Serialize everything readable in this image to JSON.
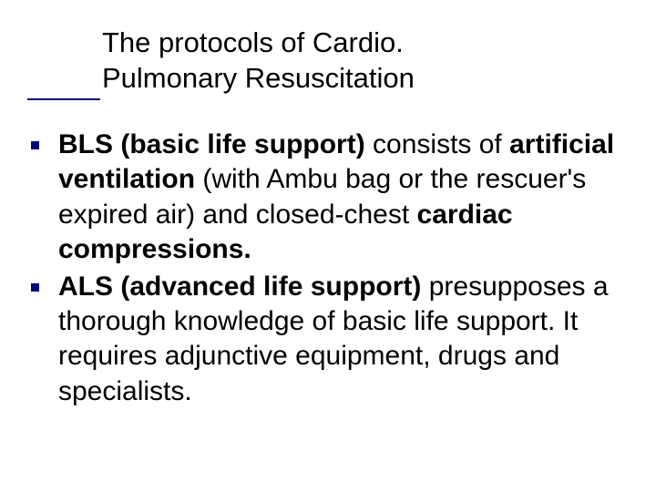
{
  "colors": {
    "background": "#ffffff",
    "text": "#000000",
    "accent": "#000080"
  },
  "typography": {
    "title_fontsize": 31,
    "body_fontsize": 30,
    "title_weight": 400,
    "bold_weight": 700,
    "font_family": "Arial"
  },
  "title": {
    "line1": "The protocols of Cardio.",
    "line2": "Pulmonary Resuscitation"
  },
  "bullets": [
    {
      "runs": [
        {
          "text": "BLS (basic life support) ",
          "bold": true
        },
        {
          "text": "consists of ",
          "bold": false
        },
        {
          "text": "artificial ventilation ",
          "bold": true
        },
        {
          "text": "(with Ambu bag or the rescuer's expired air) and closed-chest ",
          "bold": false
        },
        {
          "text": "cardiac compressions.",
          "bold": true
        }
      ]
    },
    {
      "runs": [
        {
          "text": "ALS (advanced life support) ",
          "bold": true
        },
        {
          "text": "presupposes a thorough knowledge of basic life support. It requires adjunctive equipment, drugs and specialists.",
          "bold": false
        }
      ]
    }
  ]
}
